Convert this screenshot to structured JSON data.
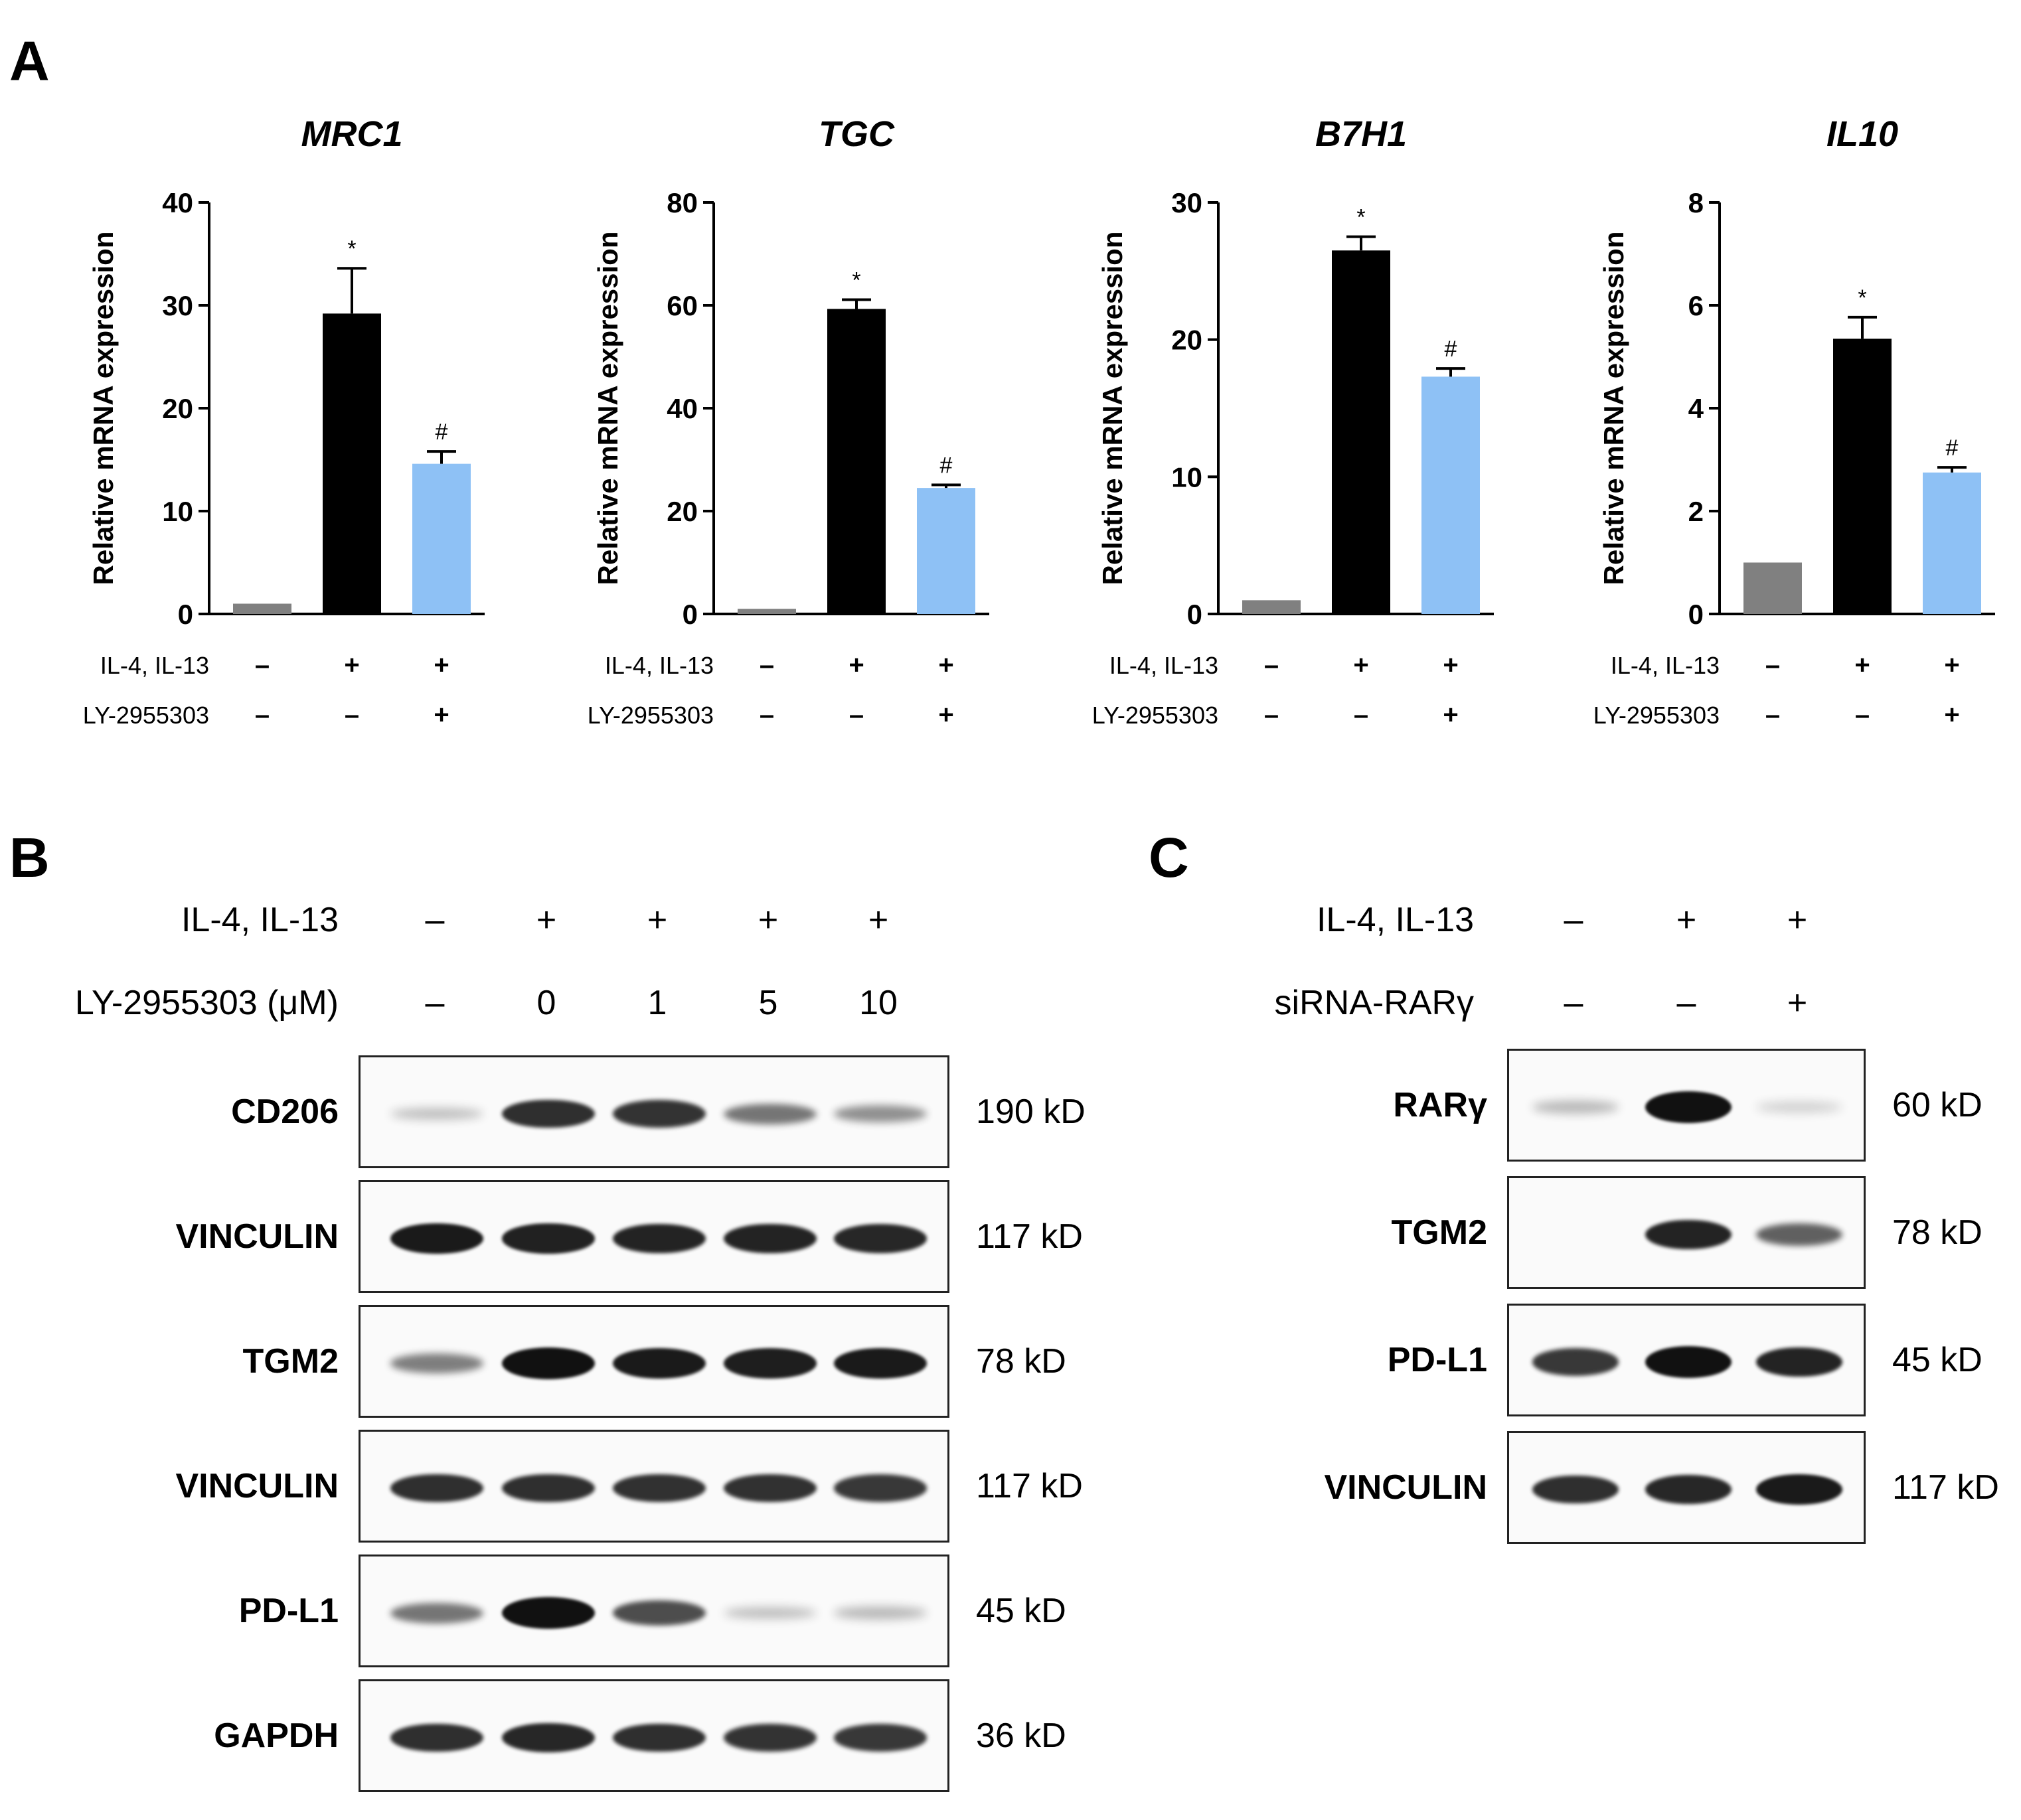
{
  "panels": {
    "a": "A",
    "b": "B",
    "c": "C"
  },
  "colors": {
    "control": "#808080",
    "il4_il13": "#000000",
    "ly_treated": "#8ec1f5",
    "axis": "#000000"
  },
  "chart_data": [
    {
      "type": "bar",
      "title": "MRC1",
      "ylabel": "Relative mRNA expression",
      "ylim": [
        0,
        40
      ],
      "yticks": [
        "0",
        "10",
        "20",
        "30",
        "40"
      ],
      "values": [
        1.0,
        29.2,
        14.6
      ],
      "errors": [
        0,
        4.4,
        1.2
      ],
      "significance": [
        "",
        "*",
        "#"
      ],
      "conditions": [
        {
          "label": "IL-4, IL-13",
          "symbols": [
            "–",
            "+",
            "+"
          ]
        },
        {
          "label": "LY-2955303",
          "symbols": [
            "–",
            "–",
            "+"
          ]
        }
      ]
    },
    {
      "type": "bar",
      "title": "TGC",
      "ylabel": "Relative mRNA expression",
      "ylim": [
        0,
        80
      ],
      "yticks": [
        "0",
        "20",
        "40",
        "60",
        "80"
      ],
      "values": [
        1.0,
        59.3,
        24.5
      ],
      "errors": [
        0,
        1.8,
        0.6
      ],
      "significance": [
        "",
        "*",
        "#"
      ],
      "conditions": [
        {
          "label": "IL-4, IL-13",
          "symbols": [
            "–",
            "+",
            "+"
          ]
        },
        {
          "label": "LY-2955303",
          "symbols": [
            "–",
            "–",
            "+"
          ]
        }
      ]
    },
    {
      "type": "bar",
      "title": "B7H1",
      "ylabel": "Relative mRNA expression",
      "ylim": [
        0,
        30
      ],
      "yticks": [
        "0",
        "10",
        "20",
        "30"
      ],
      "values": [
        1.0,
        26.5,
        17.3
      ],
      "errors": [
        0,
        1.0,
        0.6
      ],
      "significance": [
        "",
        "*",
        "#"
      ],
      "conditions": [
        {
          "label": "IL-4, IL-13",
          "symbols": [
            "–",
            "+",
            "+"
          ]
        },
        {
          "label": "LY-2955303",
          "symbols": [
            "–",
            "–",
            "+"
          ]
        }
      ]
    },
    {
      "type": "bar",
      "title": "IL10",
      "ylabel": "Relative mRNA expression",
      "ylim": [
        0,
        8
      ],
      "yticks": [
        "0",
        "2",
        "4",
        "6",
        "8"
      ],
      "values": [
        1.0,
        5.35,
        2.75
      ],
      "errors": [
        0,
        0.42,
        0.1
      ],
      "significance": [
        "",
        "*",
        "#"
      ],
      "conditions": [
        {
          "label": "IL-4, IL-13",
          "symbols": [
            "–",
            "+",
            "+"
          ]
        },
        {
          "label": "LY-2955303",
          "symbols": [
            "–",
            "–",
            "+"
          ]
        }
      ]
    }
  ],
  "blot_b": {
    "conditions": [
      {
        "label": "IL-4, IL-13",
        "symbols": [
          "–",
          "+",
          "+",
          "+",
          "+"
        ]
      },
      {
        "label": "LY-2955303 (μM)",
        "symbols": [
          "–",
          "0",
          "1",
          "5",
          "10"
        ]
      }
    ],
    "rows": [
      {
        "protein": "CD206",
        "size": "190 kD",
        "intensity": [
          0.12,
          0.85,
          0.82,
          0.5,
          0.35
        ]
      },
      {
        "protein": "VINCULIN",
        "size": "117 kD",
        "intensity": [
          0.95,
          0.92,
          0.9,
          0.9,
          0.88
        ]
      },
      {
        "protein": "TGM2",
        "size": "78 kD",
        "intensity": [
          0.45,
          1.0,
          0.95,
          0.93,
          0.95
        ]
      },
      {
        "protein": "VINCULIN",
        "size": "117 kD",
        "intensity": [
          0.85,
          0.85,
          0.83,
          0.83,
          0.8
        ]
      },
      {
        "protein": "PD-L1",
        "size": "45 kD",
        "intensity": [
          0.5,
          1.0,
          0.7,
          0.12,
          0.15
        ]
      },
      {
        "protein": "GAPDH",
        "size": "36 kD",
        "intensity": [
          0.85,
          0.88,
          0.85,
          0.82,
          0.8
        ]
      }
    ]
  },
  "blot_c": {
    "conditions": [
      {
        "label": "IL-4, IL-13",
        "symbols": [
          "–",
          "+",
          "+"
        ]
      },
      {
        "label": "siRNA-RARγ",
        "symbols": [
          "–",
          "–",
          "+"
        ]
      }
    ],
    "rows": [
      {
        "protein": "RARγ",
        "size": "60 kD",
        "intensity": [
          0.15,
          1.0,
          0.05
        ]
      },
      {
        "protein": "TGM2",
        "size": "78 kD",
        "intensity": [
          0.0,
          0.9,
          0.6
        ]
      },
      {
        "protein": "PD-L1",
        "size": "45 kD",
        "intensity": [
          0.8,
          1.0,
          0.9
        ]
      },
      {
        "protein": "VINCULIN",
        "size": "117 kD",
        "intensity": [
          0.85,
          0.88,
          0.95
        ]
      }
    ]
  }
}
